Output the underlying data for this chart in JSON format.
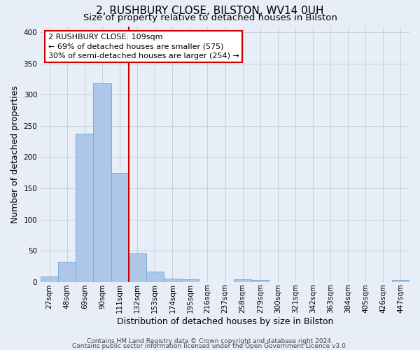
{
  "title": "2, RUSHBURY CLOSE, BILSTON, WV14 0UH",
  "subtitle": "Size of property relative to detached houses in Bilston",
  "xlabel": "Distribution of detached houses by size in Bilston",
  "ylabel": "Number of detached properties",
  "bar_labels": [
    "27sqm",
    "48sqm",
    "69sqm",
    "90sqm",
    "111sqm",
    "132sqm",
    "153sqm",
    "174sqm",
    "195sqm",
    "216sqm",
    "237sqm",
    "258sqm",
    "279sqm",
    "300sqm",
    "321sqm",
    "342sqm",
    "363sqm",
    "384sqm",
    "405sqm",
    "426sqm",
    "447sqm"
  ],
  "bar_values": [
    8,
    32,
    238,
    318,
    175,
    45,
    16,
    5,
    4,
    0,
    0,
    4,
    3,
    0,
    0,
    0,
    0,
    0,
    0,
    0,
    3
  ],
  "bar_color": "#aec6e8",
  "bar_edgecolor": "#7aaed4",
  "vline_x_index": 4,
  "vline_color": "#cc0000",
  "ylim": [
    0,
    410
  ],
  "yticks": [
    0,
    50,
    100,
    150,
    200,
    250,
    300,
    350,
    400
  ],
  "annotation_text": "2 RUSHBURY CLOSE: 109sqm\n← 69% of detached houses are smaller (575)\n30% of semi-detached houses are larger (254) →",
  "annotation_box_facecolor": "#ffffff",
  "annotation_box_edgecolor": "#cc0000",
  "footer_line1": "Contains HM Land Registry data © Crown copyright and database right 2024.",
  "footer_line2": "Contains public sector information licensed under the Open Government Licence v3.0.",
  "background_color": "#e8eef8",
  "grid_color": "#c8d0dc",
  "title_fontsize": 11,
  "subtitle_fontsize": 9.5,
  "axis_label_fontsize": 9,
  "tick_fontsize": 7.5,
  "annotation_fontsize": 8,
  "footer_fontsize": 6.5
}
